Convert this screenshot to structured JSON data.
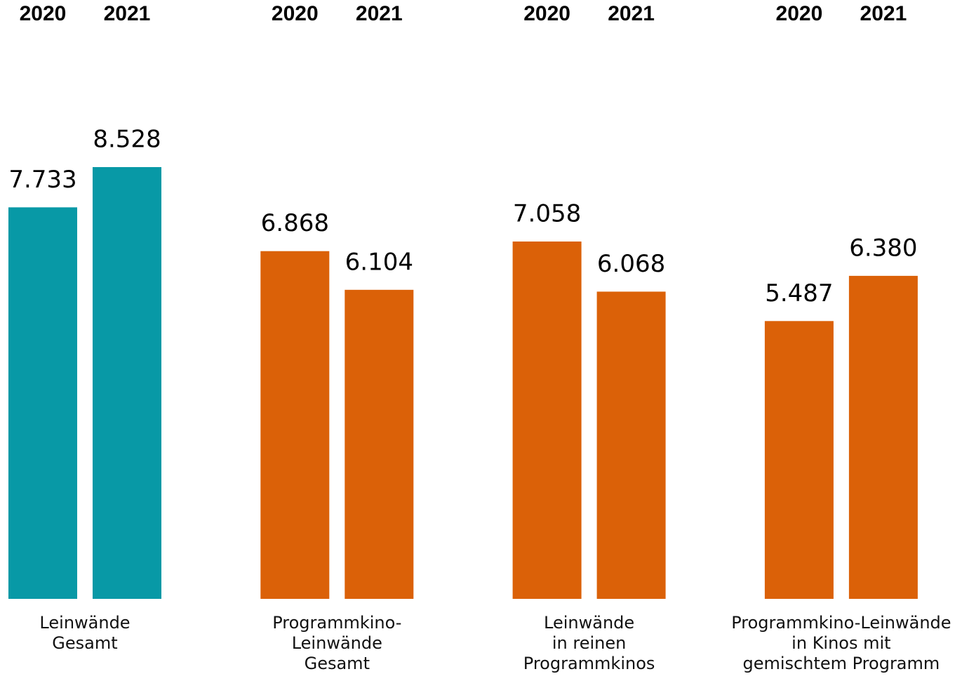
{
  "chart_data": {
    "type": "bar",
    "categories": [
      "Leinwände\nGesamt",
      "Programmkino-\nLeinwände\nGesamt",
      "Leinwände\nin reinen\nProgrammkinos",
      "Programmkino-Leinwände\nin Kinos mit\ngemischtem Programm"
    ],
    "colors": [
      "#0899a6",
      "#db6108",
      "#db6108",
      "#db6108"
    ],
    "series": [
      {
        "name": "2020",
        "values": [
          7733,
          6868,
          7058,
          5487
        ],
        "value_labels": [
          "7.733",
          "6.868",
          "7.058",
          "5.487"
        ]
      },
      {
        "name": "2021",
        "values": [
          8528,
          6104,
          6068,
          6380
        ],
        "value_labels": [
          "8.528",
          "6.104",
          "6.068",
          "6.380"
        ]
      }
    ]
  }
}
